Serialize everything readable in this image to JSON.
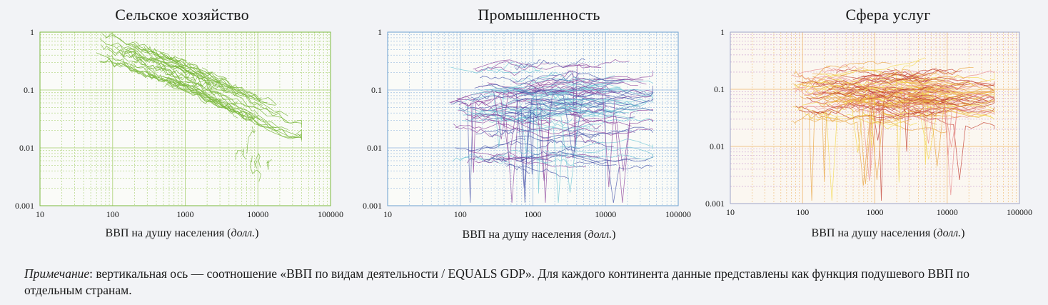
{
  "chart_data": [
    {
      "type": "line",
      "title": "Сельское хозяйство",
      "xlabel_main": "ВВП на душу населения (",
      "xlabel_unit": "долл.",
      "xlabel_close": ")",
      "xscale": "log",
      "yscale": "log",
      "xlim": [
        10,
        100000
      ],
      "ylim": [
        0.001,
        1
      ],
      "x_ticks": [
        "10",
        "100",
        "1000",
        "10000",
        "100000"
      ],
      "y_ticks": [
        "1",
        "0.1",
        "0.01",
        "0.001"
      ],
      "grid": true,
      "color": "#7ab83c",
      "trend": {
        "x": [
          70,
          200,
          1000,
          3000,
          10000,
          30000
        ],
        "y": [
          0.55,
          0.35,
          0.17,
          0.09,
          0.045,
          0.025
        ]
      }
    },
    {
      "type": "line",
      "title": "Промышленность",
      "xlabel_main": "ВВП на душу населения (",
      "xlabel_unit": "долл.",
      "xlabel_close": ")",
      "xscale": "log",
      "yscale": "log",
      "xlim": [
        10,
        100000
      ],
      "ylim": [
        0.001,
        1
      ],
      "x_ticks": [
        "10",
        "100",
        "1000",
        "10000",
        "100000"
      ],
      "y_ticks": [
        "1",
        "0.1",
        "0.01",
        "0.001"
      ],
      "grid": true,
      "colors": [
        "#4452a8",
        "#8a3f9a",
        "#6cc4d4"
      ],
      "bands": [
        {
          "y": 0.12,
          "spread": 0.35
        },
        {
          "y": 0.06,
          "spread": 0.3
        },
        {
          "y": 0.015,
          "spread": 0.5
        }
      ]
    },
    {
      "type": "line",
      "title": "Сфера услуг",
      "xlabel_main": "ВВП на душу населения (",
      "xlabel_unit": "долл.",
      "xlabel_close": ")",
      "xscale": "log",
      "yscale": "log",
      "xlim": [
        10,
        100000
      ],
      "ylim": [
        0.001,
        1
      ],
      "x_ticks": [
        "10",
        "100",
        "1000",
        "10000",
        "100000"
      ],
      "y_ticks": [
        "1",
        "0.1",
        "0.01",
        "0.001"
      ],
      "grid": true,
      "colors": [
        "#e8a23a",
        "#f4d84a",
        "#c0392b",
        "#e88a8a"
      ],
      "bands": [
        {
          "y": 0.1,
          "spread": 0.35
        },
        {
          "y": 0.06,
          "spread": 0.3
        }
      ]
    }
  ],
  "note": {
    "label": "Примечание",
    "text": ": вертикальная ось — соотношение «ВВП по видам деятельности / EQUALS GDP».  Для каждого континента данные представлены как функция подушевого ВВП по отдельным странам."
  }
}
